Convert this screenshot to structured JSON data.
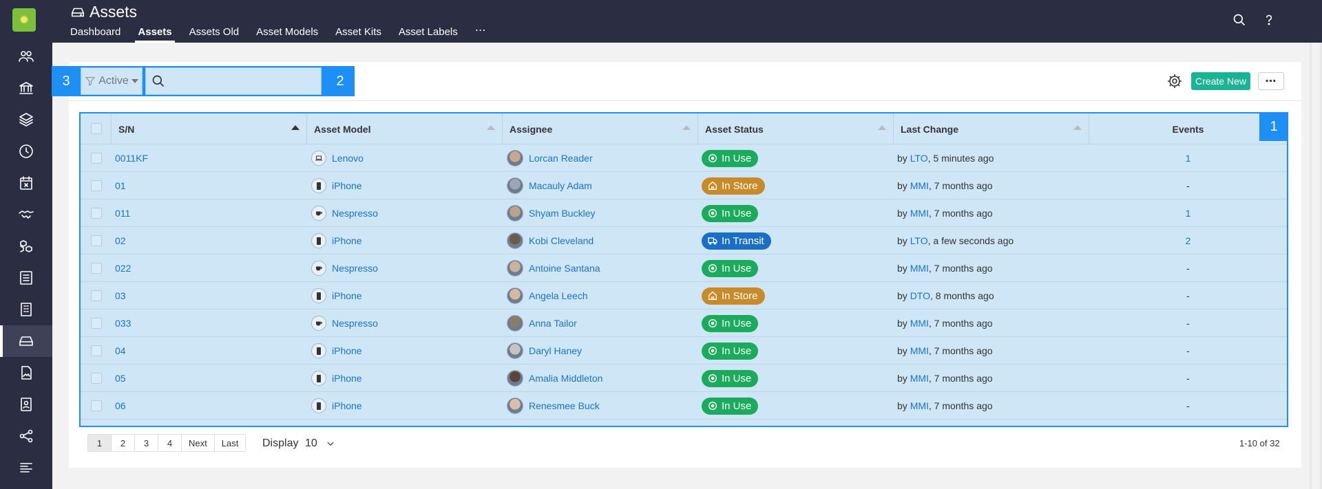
{
  "header": {
    "title": "Assets",
    "tabs": [
      {
        "label": "Dashboard",
        "active": false
      },
      {
        "label": "Assets",
        "active": true
      },
      {
        "label": "Assets Old",
        "active": false
      },
      {
        "label": "Asset Models",
        "active": false
      },
      {
        "label": "Asset Kits",
        "active": false
      },
      {
        "label": "Asset Labels",
        "active": false
      }
    ],
    "more": "⋯",
    "icons": [
      "search-icon",
      "help-icon",
      "avatar"
    ]
  },
  "sidebar": {
    "items": [
      "people-icon",
      "bank-icon",
      "layers-icon",
      "clock-icon",
      "calendar-x-icon",
      "handshake-icon",
      "cubes-icon",
      "list-icon",
      "building-icon",
      "drive-icon",
      "image-file-icon",
      "contact-icon",
      "share-icon",
      "menu-icon"
    ],
    "active_index": 9
  },
  "toolbar": {
    "filter_label": "Active",
    "search_placeholder": "",
    "overlay_filter": "3",
    "overlay_search": "2",
    "create_label": "Create New",
    "more_label": "⋯"
  },
  "table": {
    "overlay": "1",
    "columns": [
      "S/N",
      "Asset Model",
      "Assignee",
      "Asset Status",
      "Last Change",
      "Events"
    ],
    "rows": [
      {
        "sn": "0011KF",
        "model": "Lenovo",
        "model_icon": "laptop",
        "assignee": "Lorcan Reader",
        "status": "In Use",
        "status_kind": "use",
        "by": "by",
        "user": "LTO",
        "when": ", 5 minutes ago",
        "events": "1",
        "events_link": true
      },
      {
        "sn": "01",
        "model": "iPhone",
        "model_icon": "phone",
        "assignee": "Macauly Adam",
        "status": "In Store",
        "status_kind": "store",
        "by": "by",
        "user": "MMI",
        "when": ", 7 months ago",
        "events": "-",
        "events_link": false
      },
      {
        "sn": "011",
        "model": "Nespresso",
        "model_icon": "cup",
        "assignee": "Shyam Buckley",
        "status": "In Use",
        "status_kind": "use",
        "by": "by",
        "user": "MMI",
        "when": ", 7 months ago",
        "events": "1",
        "events_link": true
      },
      {
        "sn": "02",
        "model": "iPhone",
        "model_icon": "phone",
        "assignee": "Kobi Cleveland",
        "status": "In Transit",
        "status_kind": "transit",
        "by": "by",
        "user": "LTO",
        "when": ", a few seconds ago",
        "events": "2",
        "events_link": true
      },
      {
        "sn": "022",
        "model": "Nespresso",
        "model_icon": "cup",
        "assignee": "Antoine Santana",
        "status": "In Use",
        "status_kind": "use",
        "by": "by",
        "user": "MMI",
        "when": ", 7 months ago",
        "events": "-",
        "events_link": false
      },
      {
        "sn": "03",
        "model": "iPhone",
        "model_icon": "phone",
        "assignee": "Angela Leech",
        "status": "In Store",
        "status_kind": "store",
        "by": "by",
        "user": "DTO",
        "when": ", 8 months ago",
        "events": "-",
        "events_link": false
      },
      {
        "sn": "033",
        "model": "Nespresso",
        "model_icon": "cup",
        "assignee": "Anna Tailor",
        "status": "In Use",
        "status_kind": "use",
        "by": "by",
        "user": "MMI",
        "when": ", 7 months ago",
        "events": "-",
        "events_link": false
      },
      {
        "sn": "04",
        "model": "iPhone",
        "model_icon": "phone",
        "assignee": "Daryl Haney",
        "status": "In Use",
        "status_kind": "use",
        "by": "by",
        "user": "MMI",
        "when": ", 7 months ago",
        "events": "-",
        "events_link": false
      },
      {
        "sn": "05",
        "model": "iPhone",
        "model_icon": "phone",
        "assignee": "Amalia Middleton",
        "status": "In Use",
        "status_kind": "use",
        "by": "by",
        "user": "MMI",
        "when": ", 7 months ago",
        "events": "-",
        "events_link": false
      },
      {
        "sn": "06",
        "model": "iPhone",
        "model_icon": "phone",
        "assignee": "Renesmee Buck",
        "status": "In Use",
        "status_kind": "use",
        "by": "by",
        "user": "MMI",
        "when": ", 7 months ago",
        "events": "-",
        "events_link": false
      }
    ]
  },
  "pagination": {
    "pages": [
      "1",
      "2",
      "3",
      "4",
      "Next",
      "Last"
    ],
    "current": "1",
    "display_label": "Display",
    "display_value": "10",
    "range": "1-10 of 32"
  },
  "colors": {
    "header_bg": "#2b2d42",
    "accent_green": "#1ab394",
    "status_in_use": "#1aab5c",
    "status_in_store": "#c98b2a",
    "status_in_transit": "#1a6fc4",
    "overlay_blue": "#1e90f5",
    "link": "#1a73c8"
  }
}
